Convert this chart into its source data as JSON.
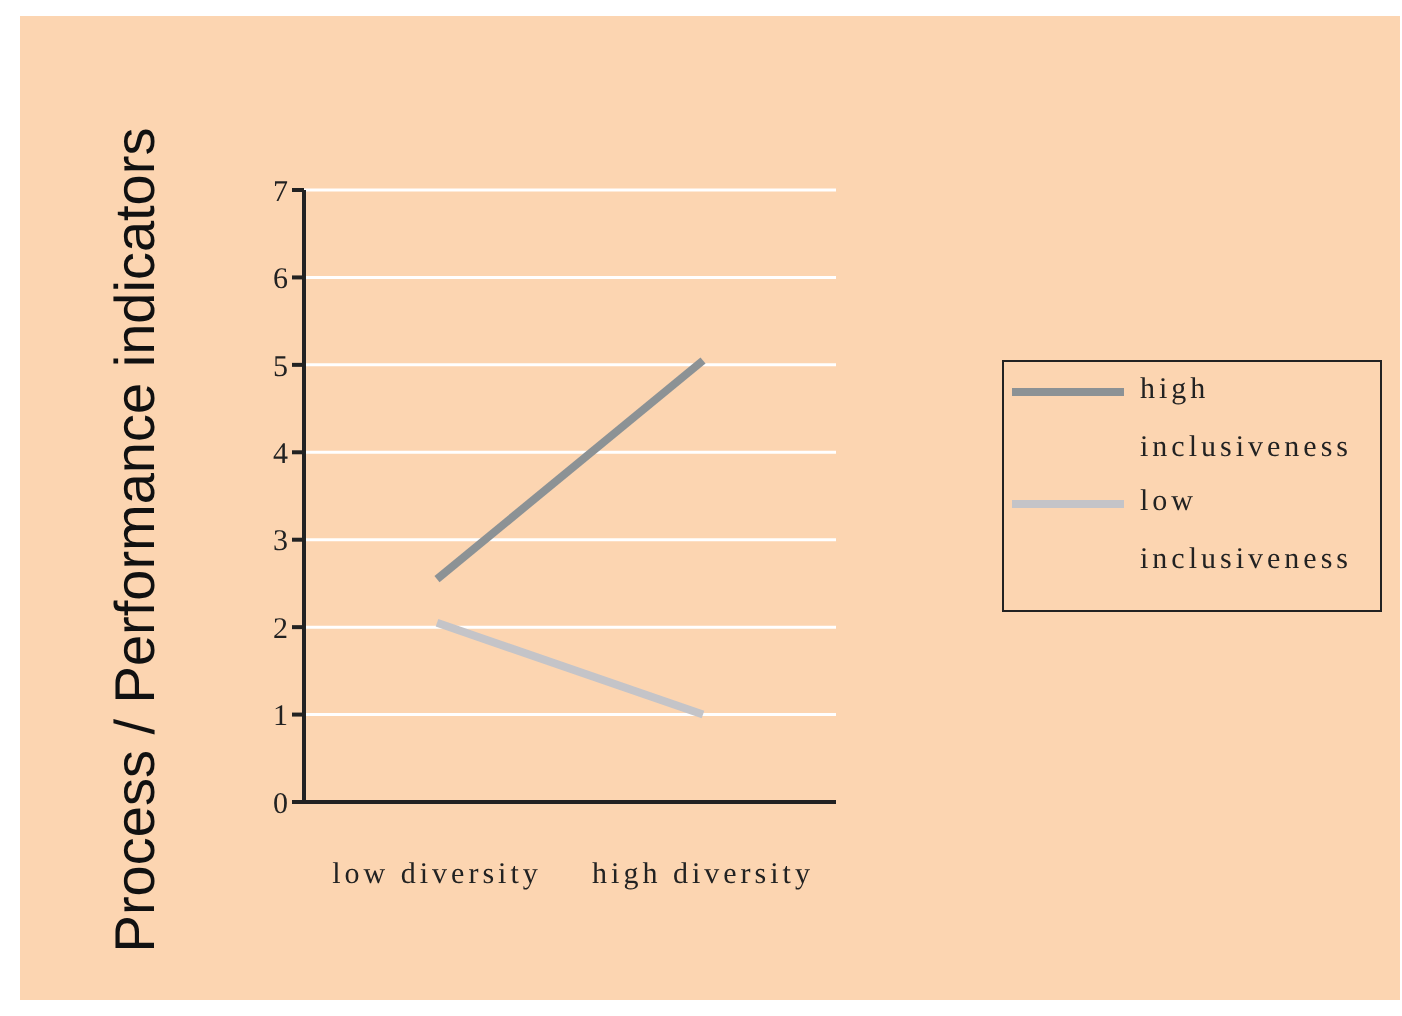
{
  "chart_data": {
    "type": "line",
    "ylabel": "Process / Performance indicators",
    "categories": [
      "low diversity",
      "high diversity"
    ],
    "series": [
      {
        "name": "high inclusiveness",
        "color": "#8c9295",
        "values": [
          2.55,
          5.05
        ]
      },
      {
        "name": "low inclusiveness",
        "color": "#c4c4c8",
        "values": [
          2.05,
          1.0
        ]
      }
    ],
    "ylim": [
      0,
      7
    ],
    "yticks": [
      0,
      1,
      2,
      3,
      4,
      5,
      6,
      7
    ],
    "grid": "y",
    "legend": "right",
    "marker": "none"
  }
}
